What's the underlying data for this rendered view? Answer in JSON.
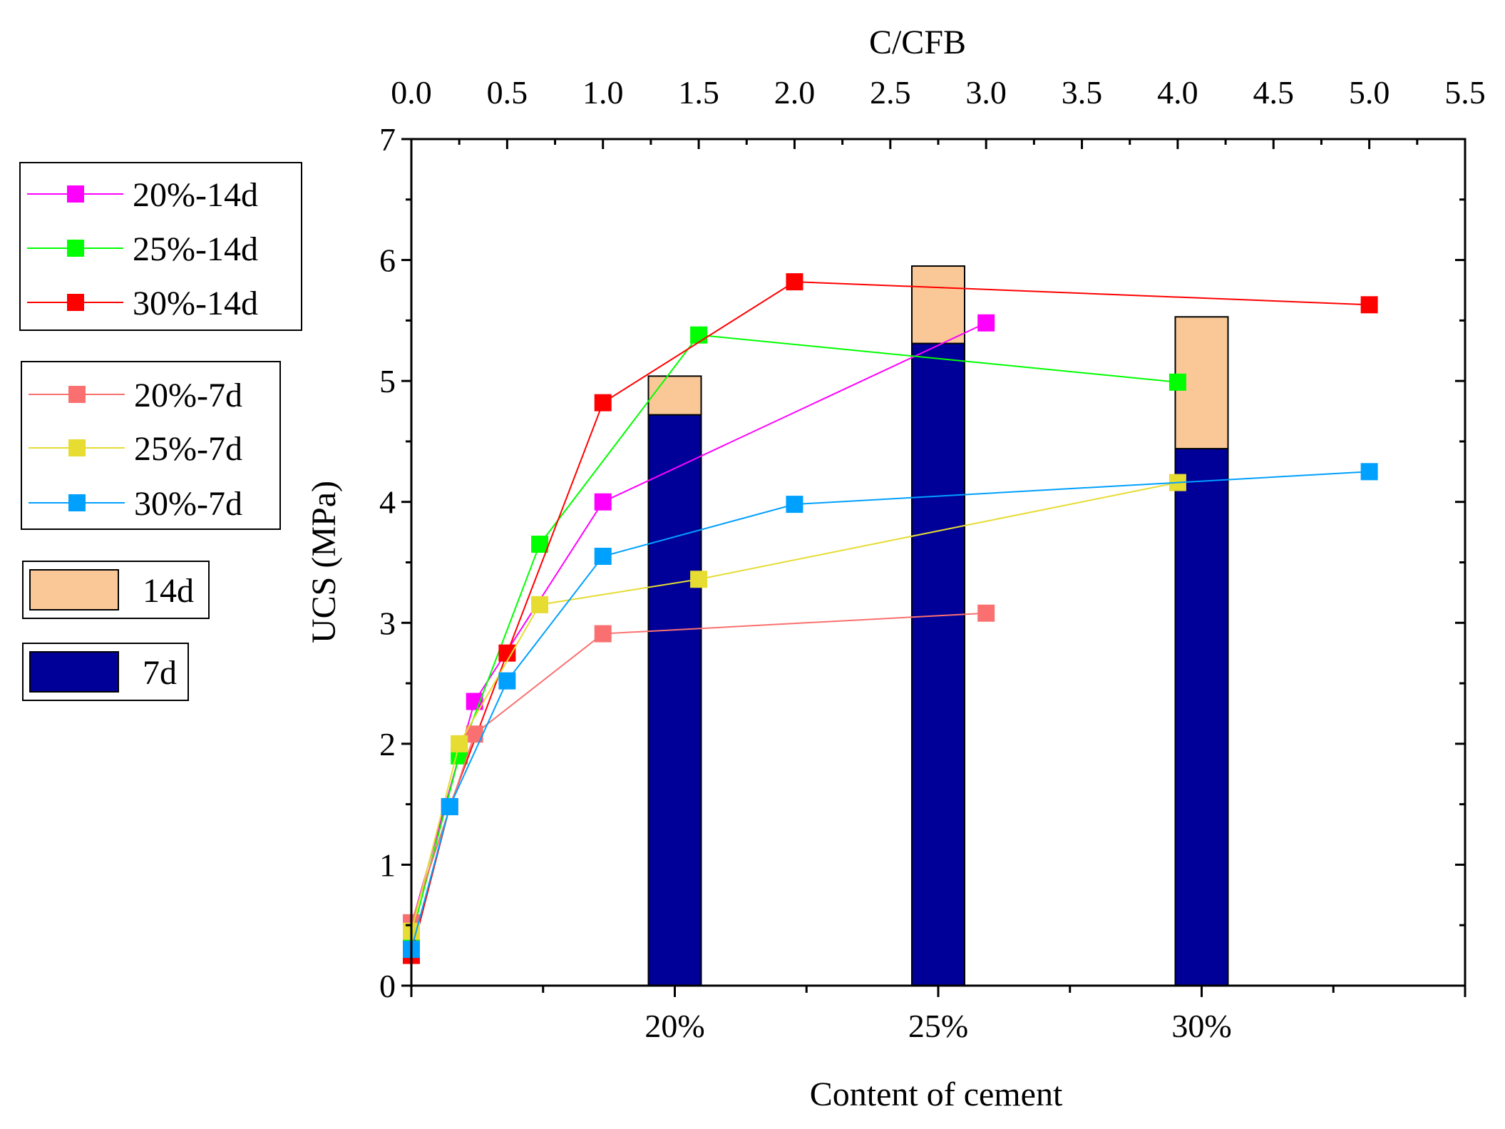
{
  "chart_data": {
    "type": "bar+line",
    "top_axis": {
      "label": "C/CFB",
      "range": [
        0,
        5.5
      ],
      "ticks": [
        "0.0",
        "0.5",
        "1.0",
        "1.5",
        "2.0",
        "2.5",
        "3.0",
        "3.5",
        "4.0",
        "4.5",
        "5.0",
        "5.5"
      ]
    },
    "left_axis": {
      "label": "UCS (MPa)",
      "range": [
        0,
        7
      ],
      "ticks": [
        "0",
        "1",
        "2",
        "3",
        "4",
        "5",
        "6",
        "7"
      ]
    },
    "bottom_axis": {
      "label": "Content of cement",
      "categories": [
        "20%",
        "25%",
        "30%"
      ]
    },
    "bars": {
      "categories": [
        "20%",
        "25%",
        "30%"
      ],
      "series": [
        {
          "name": "7d",
          "values": [
            4.72,
            5.31,
            4.44
          ],
          "color": "#000099"
        },
        {
          "name": "14d",
          "values": [
            5.04,
            5.95,
            5.53
          ],
          "color": "#FAC896"
        }
      ]
    },
    "lines": [
      {
        "name": "20%-14d",
        "color": "#FF00FF",
        "x": [
          0,
          0.33,
          1.0,
          3.0
        ],
        "y": [
          0.5,
          2.35,
          4.0,
          5.48
        ]
      },
      {
        "name": "25%-14d",
        "color": "#00FF00",
        "x": [
          0,
          0.25,
          0.67,
          1.5,
          4.0
        ],
        "y": [
          0.4,
          1.9,
          3.65,
          5.38,
          4.99
        ]
      },
      {
        "name": "30%-14d",
        "color": "#FF0000",
        "x": [
          0,
          0.2,
          0.5,
          1.0,
          2.0,
          5.0
        ],
        "y": [
          0.25,
          1.48,
          2.75,
          4.82,
          5.82,
          5.63
        ]
      },
      {
        "name": "20%-7d",
        "color": "#FA7070",
        "x": [
          0,
          0.33,
          1.0,
          3.0
        ],
        "y": [
          0.52,
          2.08,
          2.91,
          3.08
        ]
      },
      {
        "name": "25%-7d",
        "color": "#E6DC32",
        "x": [
          0,
          0.25,
          0.67,
          1.5,
          4.0
        ],
        "y": [
          0.45,
          2.0,
          3.15,
          3.36,
          4.16
        ]
      },
      {
        "name": "30%-7d",
        "color": "#00A0FF",
        "x": [
          0,
          0.2,
          0.5,
          1.0,
          2.0,
          5.0
        ],
        "y": [
          0.3,
          1.48,
          2.52,
          3.55,
          3.98,
          4.25
        ]
      }
    ],
    "legend_groups": [
      [
        "20%-14d",
        "25%-14d",
        "30%-14d"
      ],
      [
        "20%-7d",
        "25%-7d",
        "30%-7d"
      ],
      [
        "14d"
      ],
      [
        "7d"
      ]
    ],
    "legend_position": "left"
  }
}
